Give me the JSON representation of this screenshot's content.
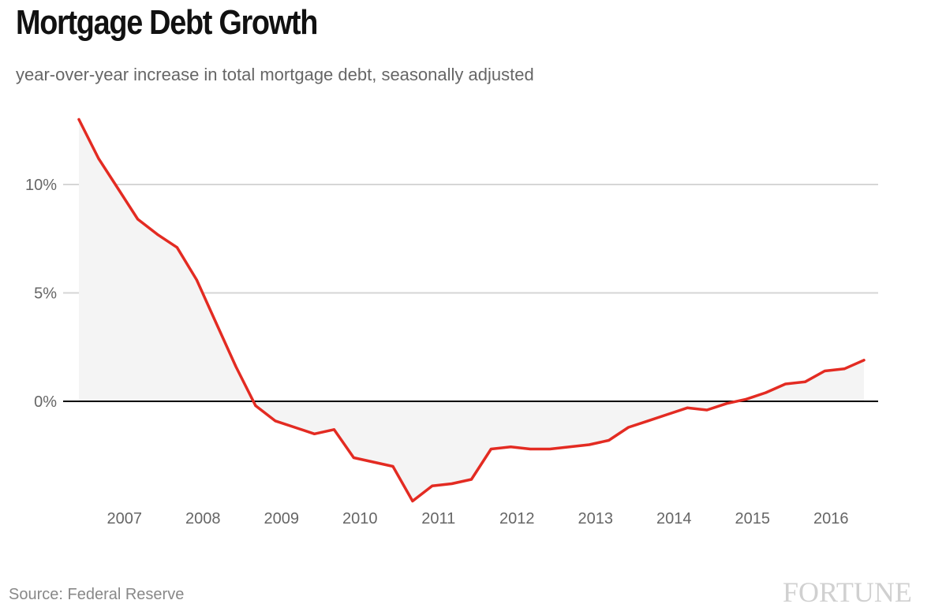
{
  "header": {
    "title": "Mortgage Debt Growth",
    "subtitle": "year-over-year increase in total mortgage debt, seasonally adjusted"
  },
  "footer": {
    "source": "Source: Federal Reserve",
    "logo": "FORTUNE"
  },
  "colors": {
    "line": "#e32b22",
    "area": "#f4f4f4",
    "grid": "#d6d6d6",
    "zero_line": "#000000",
    "tick_text": "#666666"
  },
  "chart_data": {
    "type": "area",
    "title": "Mortgage Debt Growth",
    "subtitle": "year-over-year increase in total mortgage debt, seasonally adjusted",
    "source": "Source: Federal Reserve",
    "ylim": [
      -4.5,
      13
    ],
    "yticks": [
      {
        "value": 0,
        "label": "0%"
      },
      {
        "value": 5,
        "label": "5%"
      },
      {
        "value": 10,
        "label": "10%"
      }
    ],
    "xlim": [
      2006.4,
      2016.9
    ],
    "xticks": [
      {
        "value": 2007,
        "label": "2007"
      },
      {
        "value": 2008,
        "label": "2008"
      },
      {
        "value": 2009,
        "label": "2009"
      },
      {
        "value": 2010,
        "label": "2010"
      },
      {
        "value": 2011,
        "label": "2011"
      },
      {
        "value": 2012,
        "label": "2012"
      },
      {
        "value": 2013,
        "label": "2013"
      },
      {
        "value": 2014,
        "label": "2014"
      },
      {
        "value": 2015,
        "label": "2015"
      },
      {
        "value": 2016,
        "label": "2016"
      }
    ],
    "grid": true,
    "legend": "none",
    "series": [
      {
        "x": [
          2006.5,
          2006.75,
          2007.0,
          2007.25,
          2007.5,
          2007.75,
          2008.0,
          2008.25,
          2008.5,
          2008.75,
          2009.0,
          2009.25,
          2009.5,
          2009.75,
          2010.0,
          2010.25,
          2010.5,
          2010.75,
          2011.0,
          2011.25,
          2011.5,
          2011.75,
          2012.0,
          2012.25,
          2012.5,
          2012.75,
          2013.0,
          2013.25,
          2013.5,
          2013.75,
          2014.0,
          2014.25,
          2014.5,
          2014.75,
          2015.0,
          2015.25,
          2015.5,
          2015.75,
          2016.0,
          2016.25,
          2016.5
        ],
        "values": [
          13.0,
          11.2,
          9.8,
          8.4,
          7.7,
          7.1,
          5.6,
          3.6,
          1.6,
          -0.2,
          -0.9,
          -1.2,
          -1.5,
          -1.3,
          -2.6,
          -2.8,
          -3.0,
          -4.6,
          -3.9,
          -3.8,
          -3.6,
          -2.2,
          -2.1,
          -2.2,
          -2.2,
          -2.1,
          -2.0,
          -1.8,
          -1.2,
          -0.9,
          -0.6,
          -0.3,
          -0.4,
          -0.1,
          0.1,
          0.4,
          0.8,
          0.9,
          1.4,
          1.5,
          1.9
        ]
      }
    ]
  }
}
